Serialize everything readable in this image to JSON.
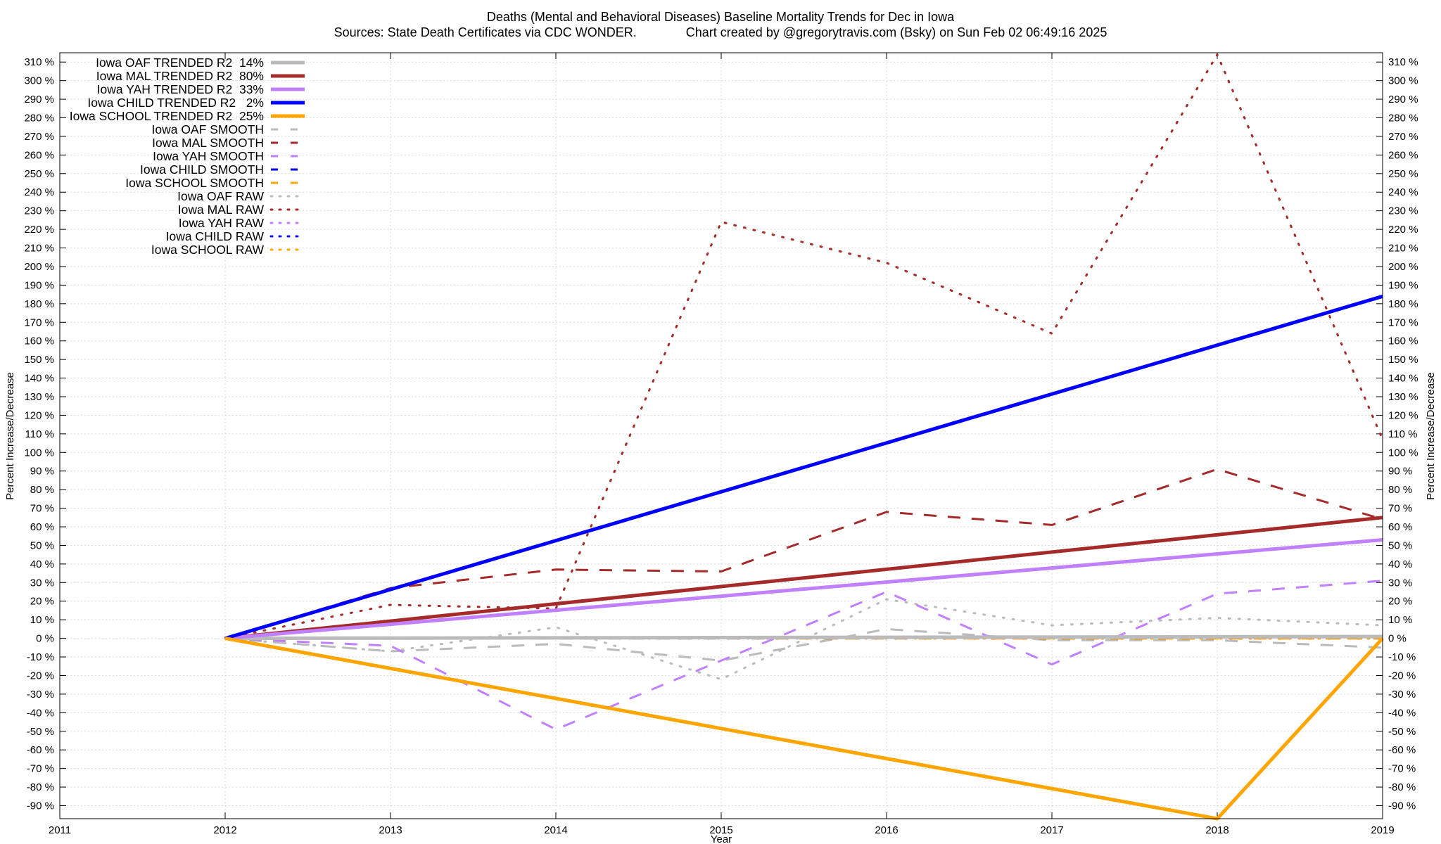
{
  "chart_data": {
    "type": "line",
    "title": "Deaths (Mental and Behavioral Diseases)  Baseline Mortality Trends for Dec in Iowa",
    "subtitle": "Sources: State Death Certificates via CDC WONDER.              Chart created by @gregorytravis.com (Bsky) on Sun Feb 02 06:49:16 2025",
    "xlabel": "Year",
    "ylabel": "Percent Increase/Decrease",
    "y2label": "Percent Increase/Decrease",
    "xlim": [
      2011,
      2019
    ],
    "ylim": [
      -97,
      315
    ],
    "x_ticks": [
      "2011",
      "2012",
      "2013",
      "2014",
      "2015",
      "2016",
      "2017",
      "2018",
      "2019"
    ],
    "y_ticks": [
      "310 %",
      "300 %",
      "290 %",
      "280 %",
      "270 %",
      "260 %",
      "250 %",
      "240 %",
      "230 %",
      "220 %",
      "210 %",
      "200 %",
      "190 %",
      "180 %",
      "170 %",
      "160 %",
      "150 %",
      "140 %",
      "130 %",
      "120 %",
      "110 %",
      "100 %",
      "90 %",
      "80 %",
      "70 %",
      "60 %",
      "50 %",
      "40 %",
      "30 %",
      "20 %",
      "10 %",
      "0 %",
      "-10 %",
      "-20 %",
      "-30 %",
      "-40 %",
      "-50 %",
      "-60 %",
      "-70 %",
      "-80 %",
      "-90 %"
    ],
    "grid": true,
    "legend_position": "top-left",
    "series": [
      {
        "name": "Iowa OAF TRENDED R2  14%",
        "color": "#bbbbbb",
        "style": "solid",
        "x": [
          2012,
          2019
        ],
        "values": [
          0,
          1
        ]
      },
      {
        "name": "Iowa MAL TRENDED R2  80%",
        "color": "#a52a2a",
        "style": "solid",
        "x": [
          2012,
          2019
        ],
        "values": [
          0,
          65
        ]
      },
      {
        "name": "Iowa YAH TRENDED R2  33%",
        "color": "#c080ff",
        "style": "solid",
        "x": [
          2012,
          2019
        ],
        "values": [
          0,
          53
        ]
      },
      {
        "name": "Iowa CHILD TRENDED R2   2%",
        "color": "#0000ff",
        "style": "solid",
        "x": [
          2012,
          2019
        ],
        "values": [
          0,
          184
        ]
      },
      {
        "name": "Iowa SCHOOL TRENDED R2  25%",
        "color": "#ffa500",
        "style": "solid",
        "x": [
          2012,
          2018,
          2019
        ],
        "values": [
          0,
          -97,
          0
        ]
      },
      {
        "name": "Iowa OAF SMOOTH",
        "color": "#bbbbbb",
        "style": "dash",
        "x": [
          2012,
          2013,
          2014,
          2015,
          2016,
          2017,
          2018,
          2019
        ],
        "values": [
          0,
          -7,
          -3,
          -12,
          5,
          -1,
          -1,
          -5
        ]
      },
      {
        "name": "Iowa MAL SMOOTH",
        "color": "#a52a2a",
        "style": "dash",
        "x": [
          2012,
          2013,
          2014,
          2015,
          2016,
          2017,
          2018,
          2019
        ],
        "values": [
          0,
          27,
          37,
          36,
          68,
          61,
          91,
          64
        ]
      },
      {
        "name": "Iowa YAH SMOOTH",
        "color": "#c080ff",
        "style": "dash",
        "x": [
          2012,
          2013,
          2014,
          2015,
          2016,
          2017,
          2018,
          2019
        ],
        "values": [
          0,
          -4,
          -49,
          -12,
          25,
          -14,
          24,
          31
        ]
      },
      {
        "name": "Iowa CHILD SMOOTH",
        "color": "#0000ff",
        "style": "dash",
        "x": [
          2012,
          2013,
          2014,
          2015,
          2016,
          2017,
          2018,
          2019
        ],
        "values": [
          0,
          0,
          0,
          0,
          0,
          0,
          0,
          0
        ]
      },
      {
        "name": "Iowa SCHOOL SMOOTH",
        "color": "#ffa500",
        "style": "dash",
        "x": [
          2012,
          2019
        ],
        "values": [
          0,
          0
        ]
      },
      {
        "name": "Iowa OAF RAW",
        "color": "#bbbbbb",
        "style": "dot",
        "x": [
          2012,
          2013,
          2014,
          2015,
          2016,
          2017,
          2018,
          2019
        ],
        "values": [
          0,
          -7,
          6,
          -22,
          21,
          7,
          11,
          7
        ]
      },
      {
        "name": "Iowa MAL RAW",
        "color": "#a52a2a",
        "style": "dot",
        "x": [
          2012,
          2013,
          2014,
          2015,
          2016,
          2017,
          2018,
          2019
        ],
        "values": [
          0,
          18,
          16,
          224,
          202,
          164,
          314,
          107
        ]
      },
      {
        "name": "Iowa YAH RAW",
        "color": "#c080ff",
        "style": "dot",
        "x": [
          2012,
          2019
        ],
        "values": [
          0,
          0
        ]
      },
      {
        "name": "Iowa CHILD RAW",
        "color": "#0000ff",
        "style": "dot",
        "x": [
          2012,
          2019
        ],
        "values": [
          0,
          0
        ]
      },
      {
        "name": "Iowa SCHOOL RAW",
        "color": "#ffa500",
        "style": "dot",
        "x": [
          2012,
          2019
        ],
        "values": [
          0,
          0
        ]
      }
    ]
  }
}
